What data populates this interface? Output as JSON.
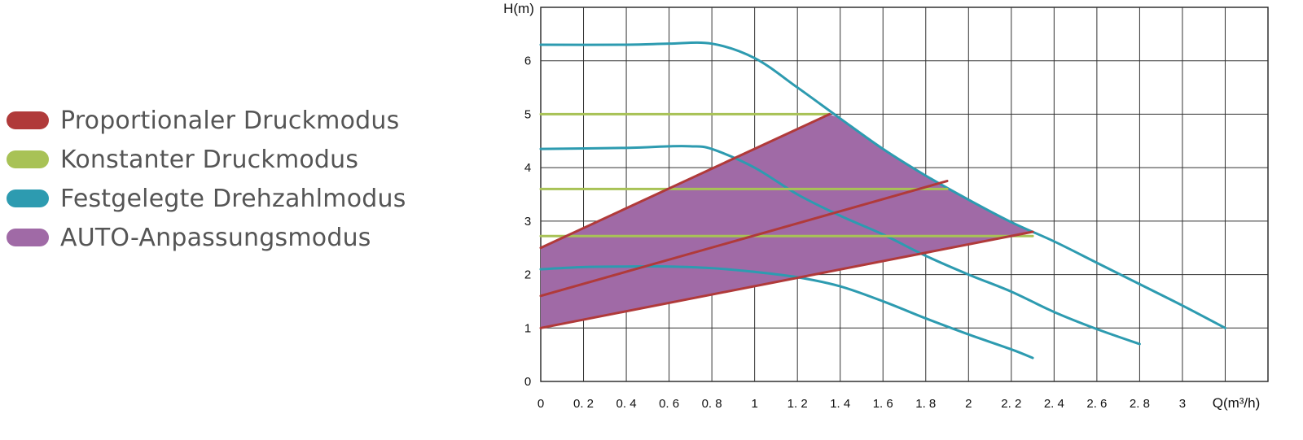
{
  "legend": {
    "items": [
      {
        "label": "Proportionaler Druckmodus",
        "color": "#b03a3a"
      },
      {
        "label": "Konstanter Druckmodus",
        "color": "#a8c256"
      },
      {
        "label": "Festgelegte Drehzahlmodus",
        "color": "#2d9bb0"
      },
      {
        "label": "AUTO-Anpassungsmodus",
        "color": "#a06aa6"
      }
    ]
  },
  "chart_data": {
    "type": "line",
    "xlabel": "Q(m³/h)",
    "ylabel": "H(m)",
    "xlim": [
      0,
      3.4
    ],
    "ylim": [
      0,
      7
    ],
    "grid": true,
    "x_ticks": [
      "0",
      "0. 2",
      "0. 4",
      "0. 6",
      "0. 8",
      "1",
      "1. 2",
      "1. 4",
      "1. 6",
      "1. 8",
      "2",
      "2. 2",
      "2. 4",
      "2. 6",
      "2. 8",
      "3"
    ],
    "y_ticks": [
      "0",
      "1",
      "2",
      "3",
      "4",
      "5",
      "6"
    ],
    "series": [
      {
        "mode": "Festgelegte Drehzahlmodus",
        "color": "#2d9bb0",
        "x": [
          0,
          0.4,
          0.6,
          0.8,
          1.0,
          1.2,
          1.4,
          1.6,
          1.8,
          2.0,
          2.2,
          2.4,
          2.6,
          2.8,
          3.0,
          3.2
        ],
        "y": [
          6.3,
          6.3,
          6.32,
          6.32,
          6.05,
          5.5,
          4.92,
          4.35,
          3.85,
          3.4,
          2.98,
          2.62,
          2.22,
          1.82,
          1.42,
          1.0
        ]
      },
      {
        "mode": "Festgelegte Drehzahlmodus",
        "color": "#2d9bb0",
        "x": [
          0,
          0.4,
          0.6,
          0.7,
          0.8,
          1.0,
          1.2,
          1.4,
          1.6,
          1.8,
          2.0,
          2.2,
          2.4,
          2.6,
          2.8
        ],
        "y": [
          4.35,
          4.37,
          4.4,
          4.4,
          4.35,
          4.0,
          3.5,
          3.1,
          2.75,
          2.35,
          2.0,
          1.68,
          1.3,
          0.98,
          0.7
        ]
      },
      {
        "mode": "Festgelegte Drehzahlmodus",
        "color": "#2d9bb0",
        "x": [
          0,
          0.2,
          0.4,
          0.6,
          0.8,
          1.0,
          1.2,
          1.4,
          1.6,
          1.8,
          2.0,
          2.2,
          2.3
        ],
        "y": [
          2.1,
          2.14,
          2.15,
          2.15,
          2.12,
          2.05,
          1.95,
          1.78,
          1.5,
          1.18,
          0.88,
          0.6,
          0.44
        ]
      },
      {
        "mode": "Konstanter Druckmodus",
        "color": "#a8c256",
        "x": [
          0,
          1.35
        ],
        "y": [
          5.0,
          5.0
        ]
      },
      {
        "mode": "Konstanter Druckmodus",
        "color": "#a8c256",
        "x": [
          0,
          1.9
        ],
        "y": [
          3.6,
          3.6
        ]
      },
      {
        "mode": "Konstanter Druckmodus",
        "color": "#a8c256",
        "x": [
          0,
          2.3
        ],
        "y": [
          2.72,
          2.72
        ]
      },
      {
        "mode": "Proportionaler Druckmodus",
        "color": "#b03a3a",
        "x": [
          0,
          1.35
        ],
        "y": [
          2.5,
          5.0
        ]
      },
      {
        "mode": "Proportionaler Druckmodus",
        "color": "#b03a3a",
        "x": [
          0,
          1.9
        ],
        "y": [
          1.6,
          3.75
        ]
      },
      {
        "mode": "Proportionaler Druckmodus",
        "color": "#b03a3a",
        "x": [
          0,
          2.3
        ],
        "y": [
          1.0,
          2.8
        ]
      }
    ],
    "auto_region": {
      "mode": "AUTO-Anpassungsmodus",
      "color": "#a06aa6",
      "x": [
        0,
        1.35,
        1.4,
        1.6,
        1.8,
        2.0,
        2.2,
        2.3,
        0
      ],
      "y": [
        2.5,
        5.0,
        4.92,
        4.35,
        3.85,
        3.4,
        2.98,
        2.8,
        1.0
      ]
    }
  }
}
